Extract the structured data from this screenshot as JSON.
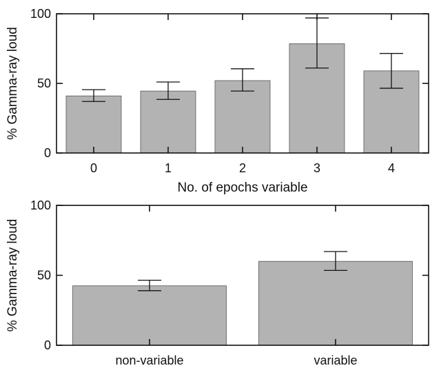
{
  "chart_data": [
    {
      "type": "bar",
      "categories": [
        "0",
        "1",
        "2",
        "3",
        "4"
      ],
      "values": [
        41,
        44.5,
        52,
        78.5,
        59
      ],
      "error_low": [
        37,
        38.5,
        44.5,
        61,
        46.5
      ],
      "error_high": [
        45.5,
        51,
        60.5,
        97,
        71.5
      ],
      "xlabel": "No. of epochs variable",
      "ylabel": "% Gamma-ray loud",
      "ylim": [
        0,
        100
      ],
      "yticks": [
        "0",
        "50",
        "100"
      ],
      "bar_color": "#b3b3b3",
      "grid": false
    },
    {
      "type": "bar",
      "categories": [
        "non-variable",
        "variable"
      ],
      "values": [
        42.5,
        60
      ],
      "error_low": [
        39,
        53.5
      ],
      "error_high": [
        46.5,
        67
      ],
      "xlabel": "",
      "ylabel": "% Gamma-ray loud",
      "ylim": [
        0,
        100
      ],
      "yticks": [
        "0",
        "50",
        "100"
      ],
      "bar_color": "#b3b3b3",
      "grid": false
    }
  ]
}
